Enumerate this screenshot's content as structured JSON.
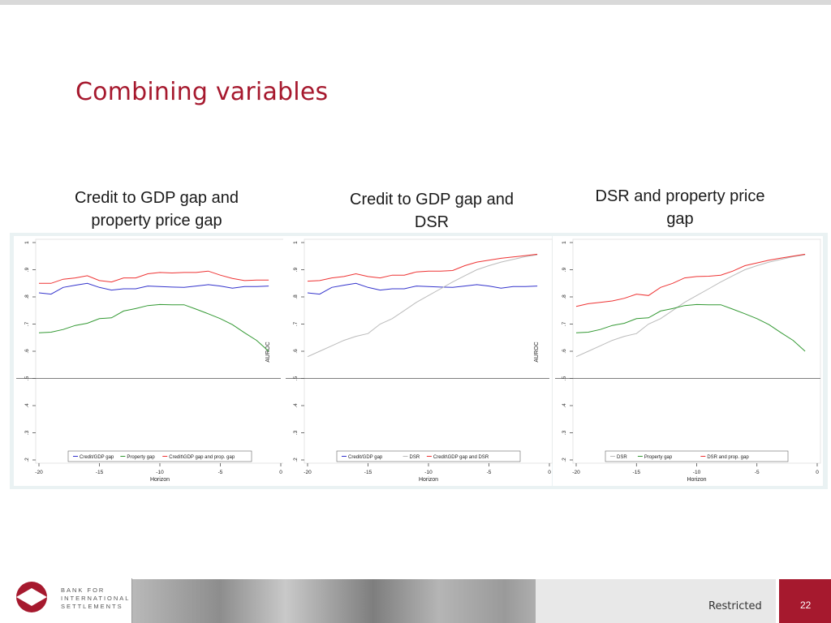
{
  "slide": {
    "title": "Combining variables",
    "panel_titles": [
      [
        "Credit to GDP gap and",
        "property price gap"
      ],
      [
        "Credit to GDP gap and",
        "DSR"
      ],
      [
        "DSR and property price",
        "gap"
      ]
    ],
    "footer": {
      "restricted": "Restricted",
      "page_number": "22",
      "logo_lines": [
        "BANK FOR",
        "INTERNATIONAL",
        "SETTLEMENTS"
      ]
    }
  },
  "chart_data": [
    {
      "type": "line",
      "xlabel": "Horizon",
      "ylabel": "AUROC",
      "xlim": [
        -20,
        0
      ],
      "ylim": [
        0.2,
        1
      ],
      "xticks": [
        "-20",
        "-15",
        "-10",
        "-5",
        "0"
      ],
      "yticks": [
        ".2",
        ".3",
        ".4",
        ".5",
        ".6",
        ".7",
        ".8",
        ".9",
        "1"
      ],
      "reference_line": 0.5,
      "legend_position": "bottom",
      "x": [
        -20,
        -19,
        -18,
        -17,
        -16,
        -15,
        -14,
        -13,
        -12,
        -11,
        -10,
        -9,
        -8,
        -7,
        -6,
        -5,
        -4,
        -3,
        -2,
        -1
      ],
      "series": [
        {
          "name": "Credit/GDP gap",
          "color": "#3333cc",
          "values": [
            0.815,
            0.81,
            0.835,
            0.843,
            0.85,
            0.835,
            0.825,
            0.83,
            0.83,
            0.84,
            0.838,
            0.836,
            0.835,
            0.84,
            0.845,
            0.84,
            0.832,
            0.838,
            0.838,
            0.84
          ]
        },
        {
          "name": "Property gap",
          "color": "#339933",
          "values": [
            0.668,
            0.67,
            0.68,
            0.695,
            0.703,
            0.72,
            0.723,
            0.748,
            0.757,
            0.768,
            0.772,
            0.771,
            0.771,
            0.755,
            0.738,
            0.72,
            0.698,
            0.668,
            0.64,
            0.6
          ]
        },
        {
          "name": "Credit\\GDP gap and prop. gap",
          "color": "#ee3333",
          "values": [
            0.85,
            0.85,
            0.865,
            0.87,
            0.878,
            0.86,
            0.855,
            0.87,
            0.87,
            0.885,
            0.89,
            0.888,
            0.89,
            0.89,
            0.895,
            0.88,
            0.868,
            0.86,
            0.862,
            0.862
          ]
        }
      ]
    },
    {
      "type": "line",
      "xlabel": "Horizon",
      "ylabel": "AUROC",
      "xlim": [
        -20,
        0
      ],
      "ylim": [
        0.2,
        1
      ],
      "xticks": [
        "-20",
        "-15",
        "-10",
        "-5",
        "0"
      ],
      "yticks": [
        ".2",
        ".3",
        ".4",
        ".5",
        ".6",
        ".7",
        ".8",
        ".9",
        "1"
      ],
      "reference_line": 0.5,
      "legend_position": "bottom",
      "x": [
        -20,
        -19,
        -18,
        -17,
        -16,
        -15,
        -14,
        -13,
        -12,
        -11,
        -10,
        -9,
        -8,
        -7,
        -6,
        -5,
        -4,
        -3,
        -2,
        -1
      ],
      "series": [
        {
          "name": "Credit/GDP gap",
          "color": "#3333cc",
          "values": [
            0.815,
            0.81,
            0.835,
            0.843,
            0.85,
            0.835,
            0.825,
            0.83,
            0.83,
            0.84,
            0.838,
            0.836,
            0.835,
            0.84,
            0.845,
            0.84,
            0.832,
            0.838,
            0.838,
            0.84
          ]
        },
        {
          "name": "DSR",
          "color": "#bbbbbb",
          "values": [
            0.58,
            0.6,
            0.62,
            0.64,
            0.655,
            0.665,
            0.7,
            0.72,
            0.75,
            0.78,
            0.805,
            0.83,
            0.855,
            0.878,
            0.9,
            0.915,
            0.928,
            0.938,
            0.948,
            0.955
          ]
        },
        {
          "name": "Credit\\GDP gap and DSR",
          "color": "#ee3333",
          "values": [
            0.858,
            0.86,
            0.87,
            0.875,
            0.885,
            0.875,
            0.87,
            0.88,
            0.88,
            0.892,
            0.895,
            0.895,
            0.897,
            0.915,
            0.928,
            0.935,
            0.942,
            0.947,
            0.952,
            0.957
          ]
        }
      ]
    },
    {
      "type": "line",
      "xlabel": "Horizon",
      "ylabel": "",
      "xlim": [
        -20,
        0
      ],
      "ylim": [
        0.2,
        1
      ],
      "xticks": [
        "-20",
        "-15",
        "-10",
        "-5",
        "0"
      ],
      "yticks": [
        ".2",
        ".3",
        ".4",
        ".5",
        ".6",
        ".7",
        ".8",
        ".9",
        "1"
      ],
      "reference_line": 0.5,
      "legend_position": "bottom",
      "x": [
        -20,
        -19,
        -18,
        -17,
        -16,
        -15,
        -14,
        -13,
        -12,
        -11,
        -10,
        -9,
        -8,
        -7,
        -6,
        -5,
        -4,
        -3,
        -2,
        -1
      ],
      "series": [
        {
          "name": "DSR",
          "color": "#bbbbbb",
          "values": [
            0.58,
            0.6,
            0.62,
            0.64,
            0.655,
            0.665,
            0.7,
            0.72,
            0.75,
            0.78,
            0.805,
            0.83,
            0.855,
            0.878,
            0.9,
            0.915,
            0.928,
            0.938,
            0.948,
            0.955
          ]
        },
        {
          "name": "Property gap",
          "color": "#339933",
          "values": [
            0.668,
            0.67,
            0.68,
            0.695,
            0.703,
            0.72,
            0.723,
            0.748,
            0.757,
            0.768,
            0.772,
            0.771,
            0.771,
            0.755,
            0.738,
            0.72,
            0.698,
            0.668,
            0.64,
            0.6
          ]
        },
        {
          "name": "DSR and prop. gap",
          "color": "#ee3333",
          "values": [
            0.765,
            0.775,
            0.78,
            0.785,
            0.795,
            0.81,
            0.805,
            0.835,
            0.85,
            0.87,
            0.875,
            0.876,
            0.88,
            0.895,
            0.915,
            0.925,
            0.935,
            0.943,
            0.95,
            0.957
          ]
        }
      ]
    }
  ]
}
